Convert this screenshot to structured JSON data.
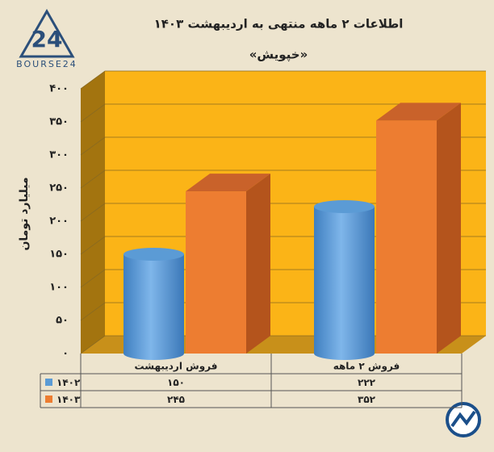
{
  "brand": "BOURSE24",
  "chart_data": {
    "type": "bar3d",
    "title": "اطلاعات ۲ ماهه منتهی به اردیبهشت ۱۴۰۳",
    "subtitle": "«خپویش»",
    "y_label": "میلیارد تومان",
    "categories": [
      "فروش اردیبهشت",
      "فروش ۲ ماهه"
    ],
    "series": [
      {
        "name": "۱۴۰۲",
        "color": "#5b9bd5",
        "shape": "cylinder",
        "values": [
          150,
          222
        ],
        "value_labels": [
          "۱۵۰",
          "۲۲۲"
        ]
      },
      {
        "name": "۱۴۰۳",
        "color": "#ed7d31",
        "shape": "box",
        "values": [
          245,
          352
        ],
        "value_labels": [
          "۲۴۵",
          "۳۵۲"
        ]
      }
    ],
    "ylim": [
      0,
      400
    ],
    "yticks": [
      {
        "value": 0,
        "label": "۰"
      },
      {
        "value": 50,
        "label": "۵۰"
      },
      {
        "value": 100,
        "label": "۱۰۰"
      },
      {
        "value": 150,
        "label": "۱۵۰"
      },
      {
        "value": 200,
        "label": "۲۰۰"
      },
      {
        "value": 250,
        "label": "۲۵۰"
      },
      {
        "value": 300,
        "label": "۳۰۰"
      },
      {
        "value": 350,
        "label": "۳۵۰"
      },
      {
        "value": 400,
        "label": "۴۰۰"
      }
    ],
    "grid": true,
    "wall_color": "#fbb417"
  }
}
